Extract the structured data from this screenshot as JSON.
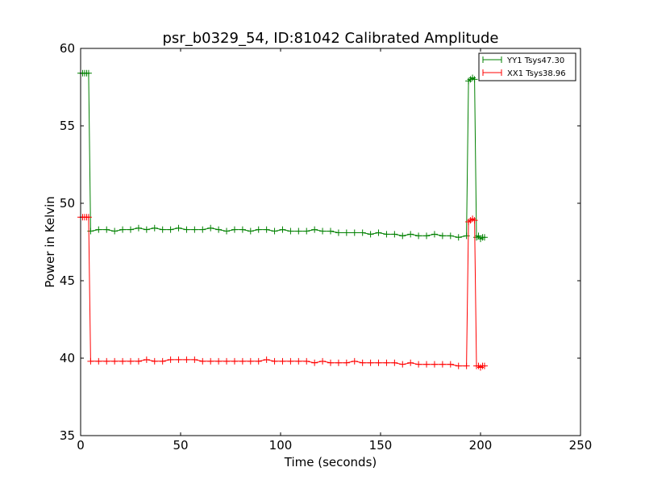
{
  "chart_data": {
    "type": "line",
    "title": "psr_b0329_54, ID:81042 Calibrated Amplitude",
    "xlabel": "Time (seconds)",
    "ylabel": "Power in Kelvin",
    "xlim": [
      0,
      250
    ],
    "ylim": [
      35,
      60
    ],
    "xticks": [
      0,
      50,
      100,
      150,
      200,
      250
    ],
    "yticks": [
      35,
      40,
      45,
      50,
      55,
      60
    ],
    "grid": false,
    "legend_position": "top-right",
    "x": [
      0,
      1,
      2,
      3,
      4,
      5,
      9,
      13,
      17,
      21,
      25,
      29,
      33,
      37,
      41,
      45,
      49,
      53,
      57,
      61,
      65,
      69,
      73,
      77,
      81,
      85,
      89,
      93,
      97,
      101,
      105,
      109,
      113,
      117,
      121,
      125,
      129,
      133,
      137,
      141,
      145,
      149,
      153,
      157,
      161,
      165,
      169,
      173,
      177,
      181,
      185,
      189,
      193,
      194,
      195,
      196,
      197,
      198,
      199,
      200,
      201,
      202
    ],
    "series": [
      {
        "name": "YY1 Tsys47.30",
        "color": "#008000",
        "marker": "+",
        "values": [
          58.4,
          58.4,
          58.4,
          58.4,
          58.4,
          48.2,
          48.3,
          48.3,
          48.2,
          48.3,
          48.3,
          48.4,
          48.3,
          48.4,
          48.3,
          48.3,
          48.4,
          48.3,
          48.3,
          48.3,
          48.4,
          48.3,
          48.2,
          48.3,
          48.3,
          48.2,
          48.3,
          48.3,
          48.2,
          48.3,
          48.2,
          48.2,
          48.2,
          48.3,
          48.2,
          48.2,
          48.1,
          48.1,
          48.1,
          48.1,
          48.0,
          48.1,
          48.0,
          48.0,
          47.9,
          48.0,
          47.9,
          47.9,
          48.0,
          47.9,
          47.9,
          47.8,
          47.9,
          57.9,
          58.0,
          58.1,
          58.0,
          47.8,
          47.9,
          47.7,
          47.8,
          47.8
        ]
      },
      {
        "name": "XX1 Tsys38.96",
        "color": "#ff0000",
        "marker": "+",
        "values": [
          49.1,
          49.1,
          49.1,
          49.1,
          49.1,
          39.8,
          39.8,
          39.8,
          39.8,
          39.8,
          39.8,
          39.8,
          39.9,
          39.8,
          39.8,
          39.9,
          39.9,
          39.9,
          39.9,
          39.8,
          39.8,
          39.8,
          39.8,
          39.8,
          39.8,
          39.8,
          39.8,
          39.9,
          39.8,
          39.8,
          39.8,
          39.8,
          39.8,
          39.7,
          39.8,
          39.7,
          39.7,
          39.7,
          39.8,
          39.7,
          39.7,
          39.7,
          39.7,
          39.7,
          39.6,
          39.7,
          39.6,
          39.6,
          39.6,
          39.6,
          39.6,
          39.5,
          39.5,
          48.8,
          48.9,
          49.0,
          48.9,
          39.5,
          39.5,
          39.4,
          39.5,
          39.5
        ]
      }
    ]
  }
}
